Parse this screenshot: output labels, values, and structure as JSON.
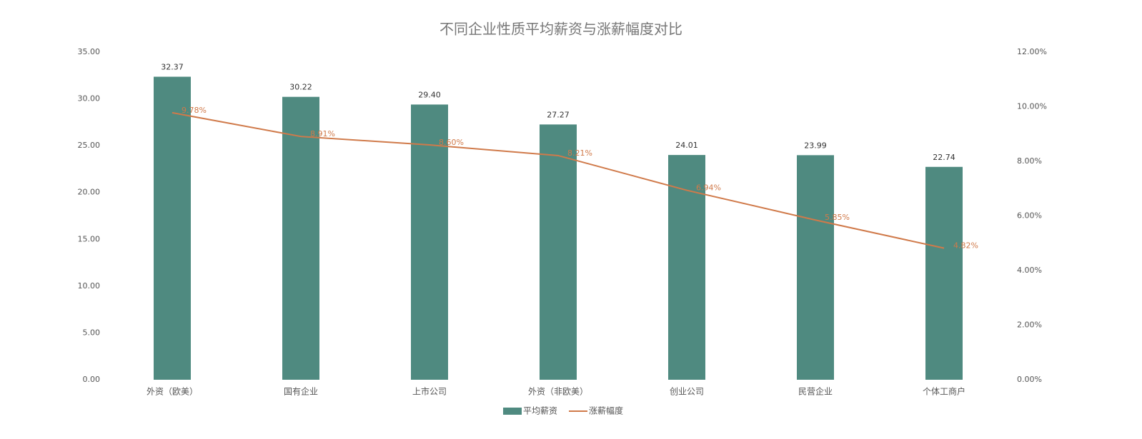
{
  "chart_data": {
    "type": "bar",
    "title": "不同企业性质平均薪资与涨薪幅度对比",
    "categories": [
      "外资（欧美）",
      "国有企业",
      "上市公司",
      "外资（非欧美）",
      "创业公司",
      "民营企业",
      "个体工商户"
    ],
    "series": [
      {
        "name": "平均薪资",
        "type": "bar",
        "color": "#4f8a80",
        "values": [
          32.37,
          30.22,
          29.4,
          27.27,
          24.01,
          23.99,
          22.74
        ],
        "value_labels": [
          "32.37",
          "30.22",
          "29.40",
          "27.27",
          "24.01",
          "23.99",
          "22.74"
        ]
      },
      {
        "name": "涨薪幅度",
        "type": "line",
        "axis": "y2",
        "color": "#d07a4a",
        "values": [
          9.78,
          8.91,
          8.6,
          8.21,
          6.94,
          5.85,
          4.82
        ],
        "value_labels": [
          "9.78%",
          "8.91%",
          "8.60%",
          "8.21%",
          "6.94%",
          "5.85%",
          "4.82%"
        ]
      }
    ],
    "ylim": [
      0,
      35
    ],
    "yticks": [
      {
        "value": 0,
        "label": "0.00"
      },
      {
        "value": 5,
        "label": "5.00"
      },
      {
        "value": 10,
        "label": "10.00"
      },
      {
        "value": 15,
        "label": "15.00"
      },
      {
        "value": 20,
        "label": "20.00"
      },
      {
        "value": 25,
        "label": "25.00"
      },
      {
        "value": 30,
        "label": "30.00"
      },
      {
        "value": 35,
        "label": "35.00"
      }
    ],
    "y2lim": [
      0,
      12
    ],
    "y2ticks": [
      {
        "value": 0,
        "label": "0.00%"
      },
      {
        "value": 2,
        "label": "2.00%"
      },
      {
        "value": 4,
        "label": "4.00%"
      },
      {
        "value": 6,
        "label": "6.00%"
      },
      {
        "value": 8,
        "label": "8.00%"
      },
      {
        "value": 10,
        "label": "10.00%"
      },
      {
        "value": 12,
        "label": "12.00%"
      }
    ],
    "grid": false,
    "legend": "bottom"
  }
}
